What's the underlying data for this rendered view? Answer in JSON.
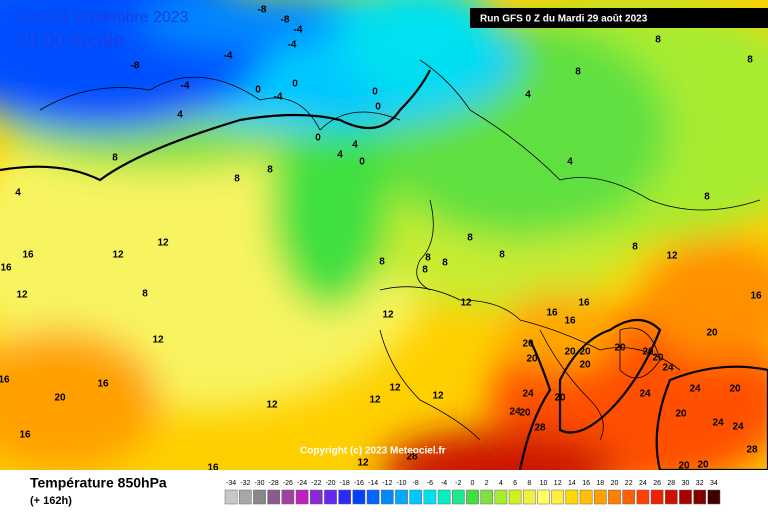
{
  "header": {
    "date": "Lundi 4 septembre 2023",
    "time": "20:00 locale",
    "run": "Run GFS 0 Z du Mardi 29 août 2023"
  },
  "copyright": "Copyright (c) 2023 Meteociel.fr",
  "footer": {
    "title": "Température 850hPa",
    "lead": "(+ 162h)"
  },
  "map": {
    "contour_labels": [
      -8,
      -8,
      -4,
      -4,
      -8,
      -4,
      0,
      -4,
      0,
      -4,
      4,
      0,
      0,
      0,
      4,
      4,
      0,
      8,
      8,
      4,
      8,
      8,
      4,
      8,
      8,
      4,
      8,
      12,
      12,
      16,
      16,
      12,
      8,
      8,
      8,
      8,
      8,
      8,
      8,
      8,
      12,
      12,
      12,
      16,
      16,
      16,
      16,
      12,
      20,
      20,
      20,
      20,
      20,
      20,
      20,
      20,
      20,
      20,
      24,
      24,
      24,
      20,
      20,
      24,
      16,
      16,
      20,
      16,
      12,
      12,
      12,
      12,
      24,
      24,
      20,
      24,
      28,
      28,
      12,
      16,
      28,
      20,
      20
    ]
  },
  "legend": {
    "ticks": [
      -34,
      -32,
      -30,
      -28,
      -26,
      -24,
      -22,
      -20,
      -18,
      -16,
      -14,
      -12,
      -10,
      -8,
      -6,
      -4,
      -2,
      0,
      2,
      4,
      6,
      8,
      10,
      12,
      14,
      16,
      18,
      20,
      22,
      24,
      26,
      28,
      30,
      32,
      34
    ],
    "colors": [
      "#c8c8c8",
      "#a8a8a8",
      "#888888",
      "#8c5a8c",
      "#a040a0",
      "#c020c0",
      "#8c28dc",
      "#6428f0",
      "#2c28f8",
      "#0040ff",
      "#0064ff",
      "#0088ff",
      "#00a8ff",
      "#00c8ff",
      "#00e0f0",
      "#00f0c0",
      "#20e890",
      "#40e040",
      "#80e040",
      "#a8ec30",
      "#d0f020",
      "#f0f040",
      "#ffff60",
      "#ffee40",
      "#ffd800",
      "#ffc000",
      "#ffa000",
      "#ff8000",
      "#ff6000",
      "#ff4000",
      "#ee2000",
      "#cc1000",
      "#aa0000",
      "#800000",
      "#400000"
    ]
  }
}
